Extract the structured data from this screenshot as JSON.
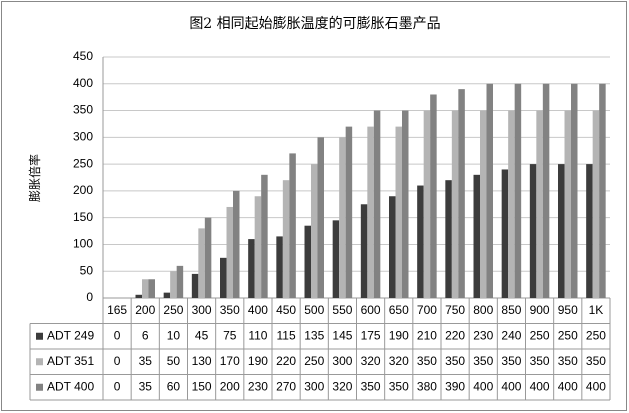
{
  "chart_data": {
    "type": "bar",
    "title": "图2 相同起始膨胀温度的可膨胀石墨产品",
    "y_label": "膨胀倍率",
    "categories": [
      "165",
      "200",
      "250",
      "300",
      "350",
      "400",
      "450",
      "500",
      "550",
      "600",
      "650",
      "700",
      "750",
      "800",
      "850",
      "900",
      "950",
      "1K"
    ],
    "series": [
      {
        "name": "ADT 249",
        "color": "#3c3c3c",
        "values": [
          0,
          6,
          10,
          45,
          75,
          110,
          115,
          135,
          145,
          175,
          190,
          210,
          220,
          230,
          240,
          250,
          250,
          250
        ]
      },
      {
        "name": "ADT 351",
        "color": "#b4b4b4",
        "values": [
          0,
          35,
          50,
          130,
          170,
          190,
          220,
          250,
          300,
          320,
          320,
          350,
          350,
          350,
          350,
          350,
          350,
          350
        ]
      },
      {
        "name": "ADT 400",
        "color": "#828282",
        "values": [
          0,
          35,
          60,
          150,
          200,
          230,
          270,
          300,
          320,
          350,
          350,
          380,
          390,
          400,
          400,
          400,
          400,
          400
        ]
      }
    ],
    "ylim": [
      0,
      450
    ],
    "yticks": [
      0,
      50,
      100,
      150,
      200,
      250,
      300,
      350,
      400,
      450
    ],
    "grid": true
  }
}
